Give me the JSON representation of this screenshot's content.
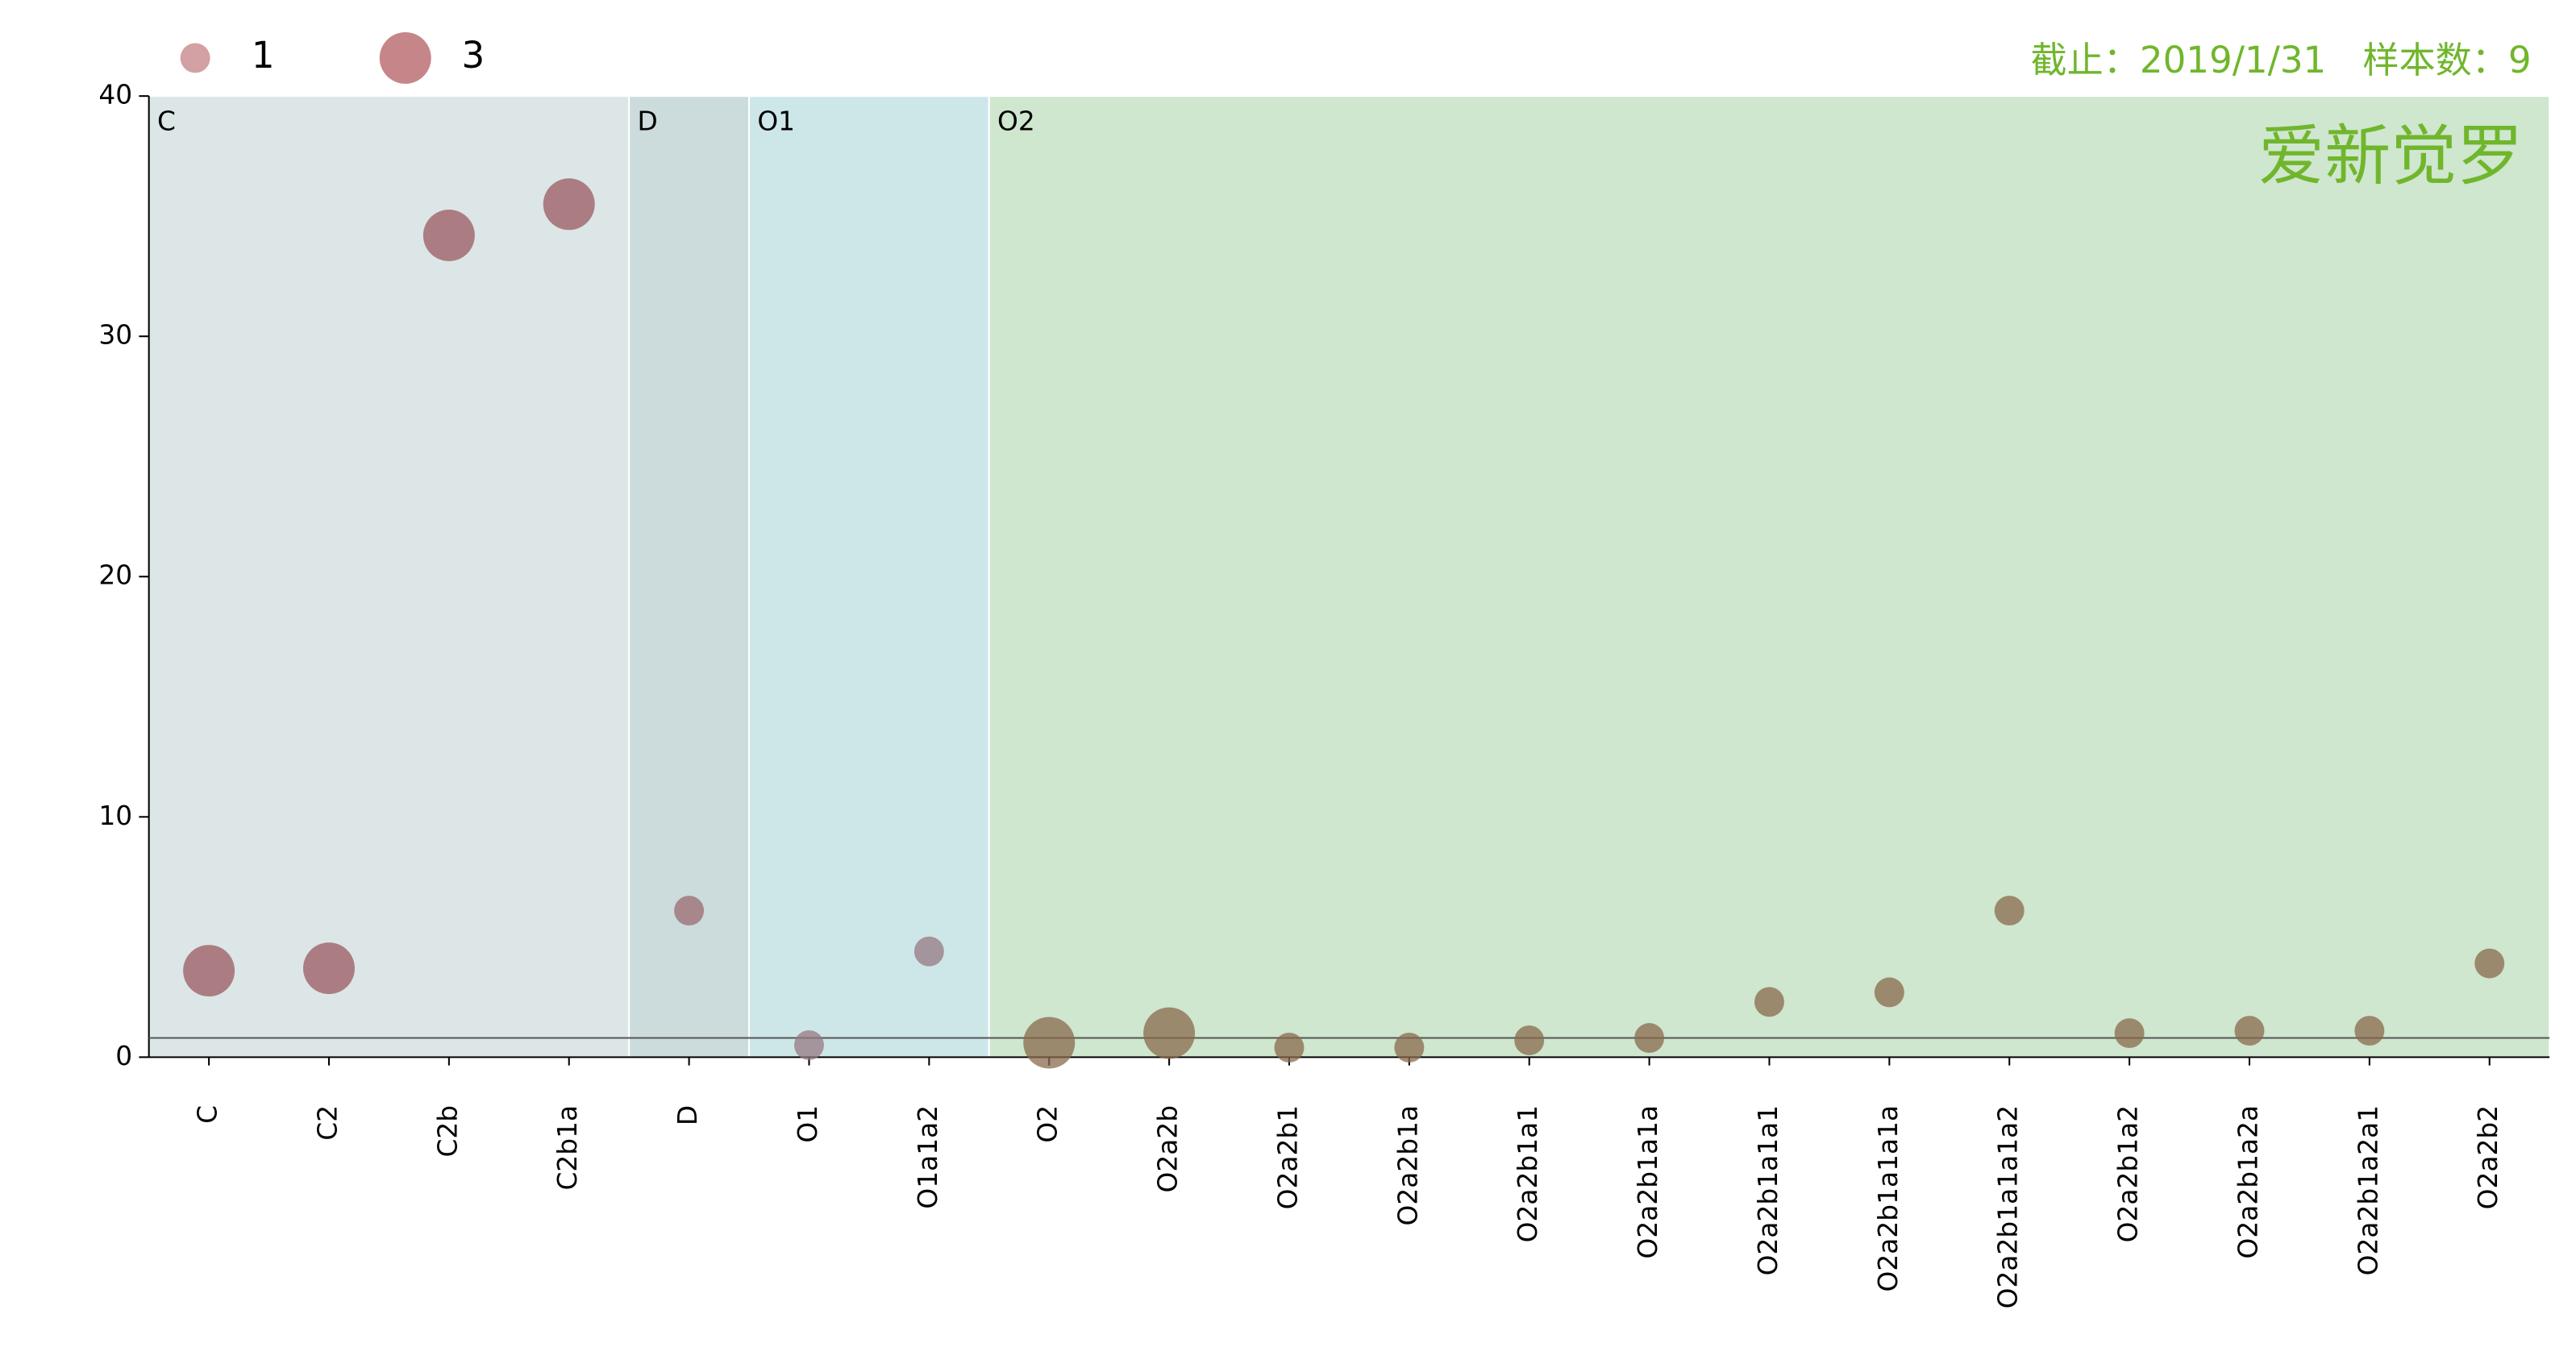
{
  "chart_data": {
    "type": "bubble",
    "note": "截止：2019/1/31　样本数：9",
    "watermark": "爱新觉罗",
    "categories": [
      "C",
      "C2",
      "C2b",
      "C2b1a",
      "D",
      "O1",
      "O1a1a2",
      "O2",
      "O2a2b",
      "O2a2b1",
      "O2a2b1a",
      "O2a2b1a1",
      "O2a2b1a1a",
      "O2a2b1a1a1",
      "O2a2b1a1a1a",
      "O2a2b1a1a1a2",
      "O2a2b1a2",
      "O2a2b1a2a",
      "O2a2b1a2a1",
      "O2a2b2"
    ],
    "values": [
      3.6,
      3.7,
      34.2,
      35.5,
      6.1,
      0.5,
      4.4,
      0.6,
      1.0,
      0.4,
      0.4,
      0.7,
      0.8,
      2.3,
      2.7,
      6.1,
      1.0,
      1.1,
      1.1,
      3.9
    ],
    "sizes": [
      3,
      3,
      3,
      3,
      1,
      1,
      1,
      3,
      3,
      1,
      1,
      1,
      1,
      1,
      1,
      1,
      1,
      1,
      1,
      1
    ],
    "size_legend": [
      1,
      3
    ],
    "legend_color": "#c0797c",
    "groups": [
      {
        "name": "C",
        "from": "C",
        "to": "C2b1a",
        "color": "#dce6e6",
        "marker_color": "#9b5a60"
      },
      {
        "name": "D",
        "from": "D",
        "to": "D",
        "color": "#ccdbdb",
        "marker_color": "#9b6a72"
      },
      {
        "name": "O1",
        "from": "O1",
        "to": "O1a1a2",
        "color": "#cde7e9",
        "marker_color": "#967880"
      },
      {
        "name": "O2",
        "from": "O2",
        "to": "O2a2b2",
        "color": "#cfe6cf",
        "marker_color": "#8a6a4c"
      }
    ],
    "hline": 0.8,
    "ylim": [
      0,
      40
    ],
    "yticks": [
      0,
      10,
      20,
      30,
      40
    ]
  }
}
